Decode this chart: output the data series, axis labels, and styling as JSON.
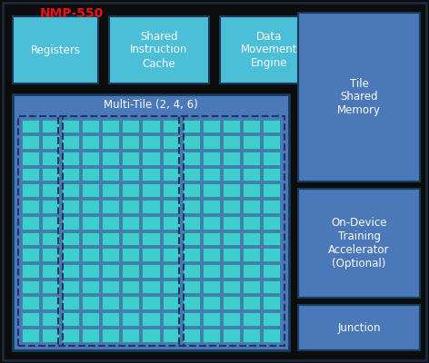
{
  "bg_color": "#0d0d0d",
  "outer_bg_color": "#1a2a3a",
  "label_nmp": "NMP-550",
  "label_nmp_color": "#ee1111",
  "top_box_color": "#4bbfd8",
  "top_box_border": "#1a3a5c",
  "right_box_color": "#4a78b8",
  "right_box_border": "#1a3a5c",
  "multitile_bg_color": "#4a78b8",
  "multitile_border_color": "#1a3a5c",
  "tile_cell_color": "#3ecece",
  "tile_cell_border": "#2a8888",
  "dashed_border_color": "#223366",
  "text_color": "#ffffff",
  "font_size_nmp": 10,
  "font_size_box": 8.5,
  "font_size_mt": 8.5,
  "grid_rows": 14,
  "group_col_counts": [
    2,
    3,
    3,
    3,
    2
  ],
  "multitile_label": "Multi-Tile (2, 4, 6)",
  "top_box_labels": [
    "Registers",
    "Shared\nInstruction\nCache",
    "Data\nMovement\nEngine"
  ],
  "right_box_labels": [
    "Tile\nShared\nMemory",
    "On-Device\nTraining\nAccelerator\n(Optional)",
    "Junction"
  ]
}
